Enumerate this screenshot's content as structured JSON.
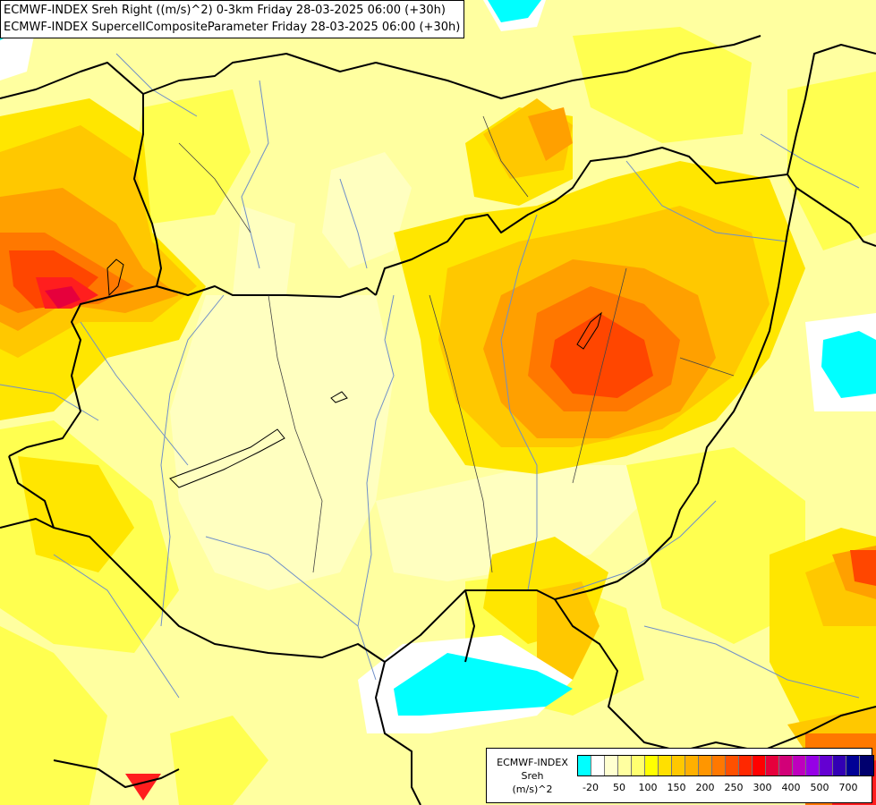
{
  "title": {
    "line1": "ECMWF-INDEX Sreh Right ((m/s)^2) 0-3km Friday 28-03-2025 06:00 (+30h)",
    "line2": "ECMWF-INDEX SupercellCompositeParameter Friday 28-03-2025 06:00 (+30h)"
  },
  "legend": {
    "title_line1": "ECMWF-INDEX",
    "title_line2": "Sreh",
    "title_line3": "(m/s)^2",
    "ticks": [
      "-20",
      "50",
      "100",
      "150",
      "200",
      "250",
      "300",
      "400",
      "500",
      "700"
    ],
    "colors": [
      "#00ffff",
      "#ffffff",
      "#ffffd0",
      "#ffffa0",
      "#ffff70",
      "#ffff00",
      "#ffe000",
      "#ffc800",
      "#ffb000",
      "#ff9600",
      "#ff7800",
      "#ff5000",
      "#ff2800",
      "#ff0000",
      "#e6003c",
      "#d20078",
      "#be00be",
      "#9600e6",
      "#6400d2",
      "#3200b4",
      "#000096",
      "#00006e"
    ]
  },
  "map": {
    "field_colors": {
      "pale": "#ffffc0",
      "light": "#ffffa0",
      "yellow": "#ffff50",
      "gold": "#ffe600",
      "amber": "#ffc800",
      "orange": "#ffa000",
      "deep_orange": "#ff7800",
      "red_orange": "#ff4600",
      "red": "#ff1e1e",
      "crimson": "#e6003c",
      "cyan": "#00ffff",
      "white": "#ffffff"
    },
    "border_color": "#000000",
    "river_color": "#6f8fc8"
  }
}
